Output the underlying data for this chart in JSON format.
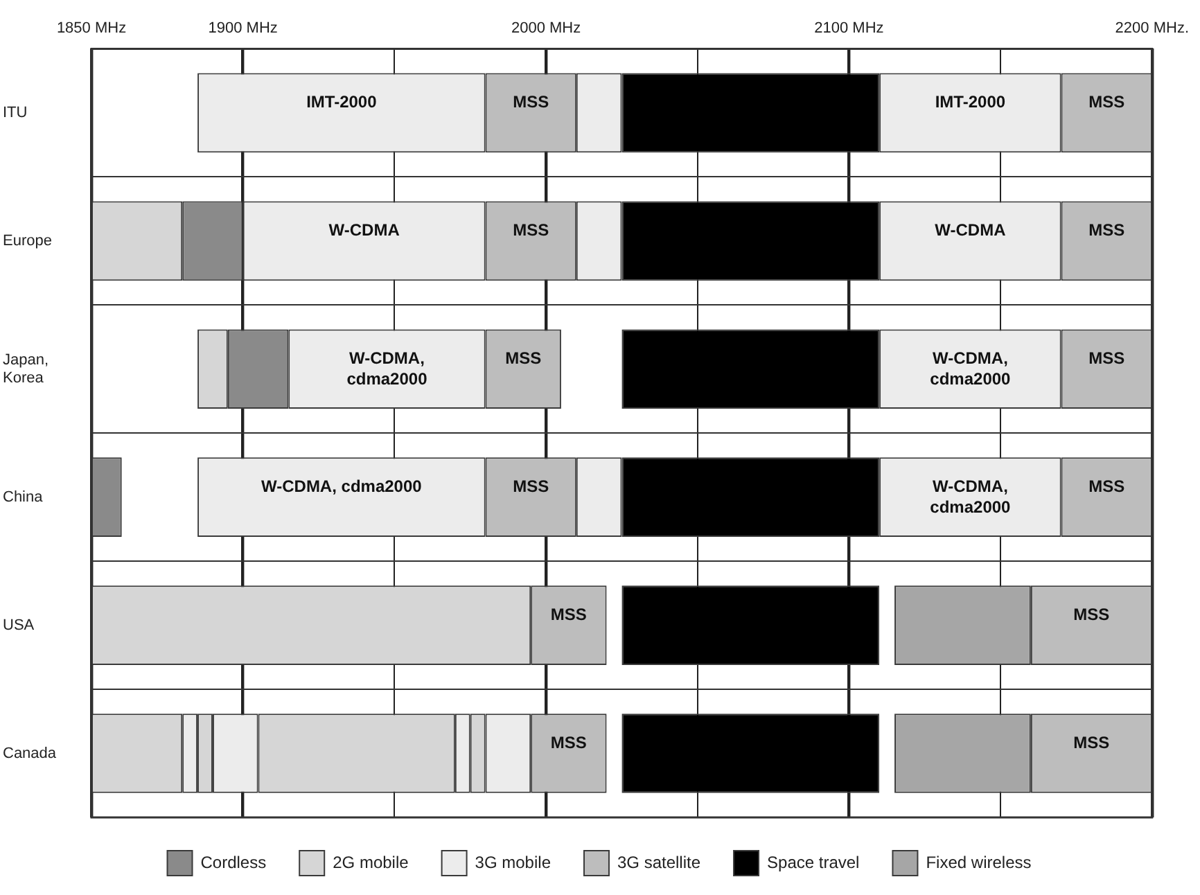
{
  "chart_data": {
    "type": "bar",
    "orientation": "horizontal",
    "categories": [
      "ITU",
      "Europe",
      "Japan, Korea",
      "China",
      "USA",
      "Canada"
    ],
    "xlim": [
      1850,
      2200
    ],
    "xticks": [
      {
        "value": 1850,
        "label": "1850 MHz"
      },
      {
        "value": 1900,
        "label": "1900 MHz"
      },
      {
        "value": 1950,
        "label": null
      },
      {
        "value": 2000,
        "label": "2000 MHz"
      },
      {
        "value": 2050,
        "label": null
      },
      {
        "value": 2100,
        "label": "2100 MHz"
      },
      {
        "value": 2150,
        "label": null
      },
      {
        "value": 2200,
        "label": "2200 MHz."
      }
    ],
    "grid": true,
    "legend": "bottom",
    "series": [
      {
        "name": "Cordless",
        "color": "#8a8a8a",
        "base": [
          null,
          1880,
          1895,
          1850,
          null,
          null
        ],
        "values": [
          null,
          20,
          20,
          10,
          null,
          null
        ]
      },
      {
        "name": "2G mobile",
        "color": "#d6d6d6",
        "base": [
          null,
          1850,
          1885,
          null,
          1850,
          1850
        ],
        "values": [
          null,
          30,
          10,
          null,
          145,
          30
        ]
      },
      {
        "name": "3G mobile",
        "color": "#ececec",
        "base": [
          1885,
          1900,
          1915,
          1885,
          null,
          1880
        ],
        "values": [
          95,
          80,
          65,
          95,
          null,
          5
        ],
        "value_labels": [
          "IMT-2000",
          "W-CDMA",
          "W-CDMA, cdma2000",
          "W-CDMA, cdma2000",
          null,
          null
        ]
      },
      {
        "name": "3G satellite",
        "color": "#bdbdbd",
        "base": [
          1980,
          1980,
          1980,
          1980,
          1995,
          1995
        ],
        "values": [
          30,
          30,
          25,
          30,
          25,
          25
        ],
        "value_labels": [
          "MSS",
          "MSS",
          "MSS",
          "MSS",
          "MSS",
          "MSS"
        ]
      },
      {
        "name": "Space travel",
        "color": "#000000",
        "base": [
          2025,
          2025,
          2025,
          2025,
          2025,
          2025
        ],
        "values": [
          85,
          85,
          85,
          85,
          85,
          85
        ]
      },
      {
        "name": "Fixed wireless",
        "color": "#a6a6a6",
        "base": [
          null,
          null,
          null,
          null,
          2115,
          2115
        ],
        "values": [
          null,
          null,
          null,
          null,
          45,
          45
        ]
      },
      {
        "color": "#d6d6d6",
        "base": [
          null,
          null,
          null,
          null,
          null,
          1885
        ],
        "values": [
          null,
          null,
          null,
          null,
          null,
          5
        ]
      },
      {
        "color": "#d6d6d6",
        "base": [
          null,
          null,
          null,
          null,
          null,
          1905
        ],
        "values": [
          null,
          null,
          null,
          null,
          null,
          65
        ]
      },
      {
        "color": "#d6d6d6",
        "base": [
          null,
          null,
          null,
          null,
          null,
          1975
        ],
        "values": [
          null,
          null,
          null,
          null,
          null,
          5
        ]
      },
      {
        "color": "#ececec",
        "base": [
          2010,
          2010,
          null,
          2010,
          null,
          1890
        ],
        "values": [
          15,
          15,
          null,
          15,
          null,
          15
        ]
      },
      {
        "color": "#ececec",
        "base": [
          2110,
          2110,
          2110,
          2110,
          null,
          1970
        ],
        "values": [
          60,
          60,
          60,
          60,
          null,
          5
        ],
        "value_labels": [
          "IMT-2000",
          "W-CDMA",
          "W-CDMA, cdma2000",
          "W-CDMA, cdma2000",
          null,
          null
        ]
      },
      {
        "color": "#ececec",
        "base": [
          null,
          null,
          null,
          null,
          null,
          1980
        ],
        "values": [
          null,
          null,
          null,
          null,
          null,
          15
        ]
      },
      {
        "color": "#bdbdbd",
        "base": [
          2170,
          2170,
          2170,
          2170,
          2160,
          2160
        ],
        "values": [
          30,
          30,
          30,
          30,
          40,
          40
        ],
        "value_labels": [
          "MSS",
          "MSS",
          "MSS",
          "MSS",
          "MSS",
          "MSS"
        ]
      }
    ]
  }
}
